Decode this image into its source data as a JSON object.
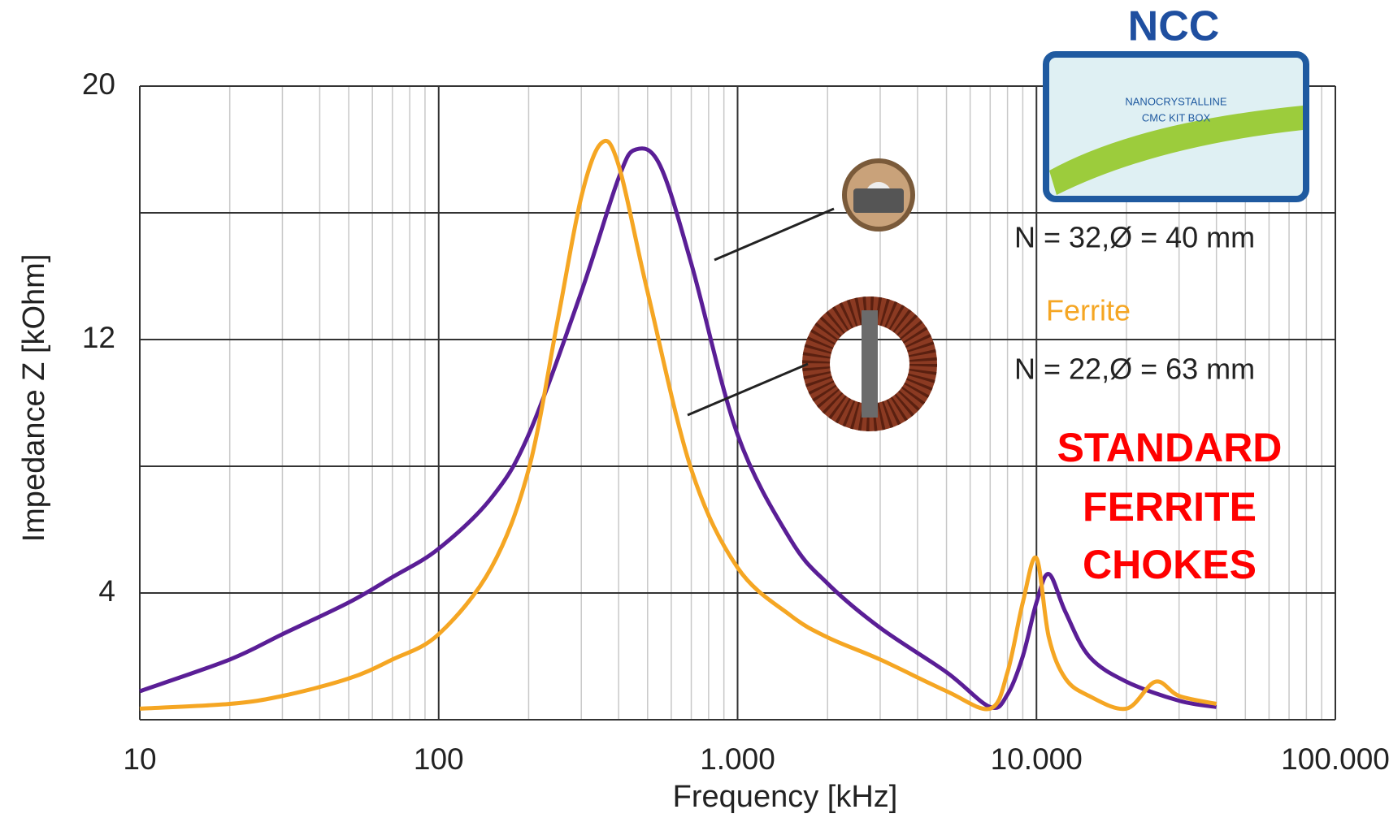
{
  "chart_data": {
    "type": "line",
    "x_label": "Frequency [kHz]",
    "y_label": "Impedance Z [kOhm]",
    "log_x": true,
    "xlim": [
      10,
      100000
    ],
    "xticks": [
      10,
      100,
      {
        "value": 1000,
        "label": "1.000"
      },
      {
        "value": 10000,
        "label": "10.000"
      },
      {
        "value": 100000,
        "label": "100.000"
      }
    ],
    "ylim": [
      0,
      20
    ],
    "yticks": [
      4,
      12,
      20
    ],
    "minor_yticks": [
      8,
      16
    ],
    "grid": true,
    "series": [
      {
        "name": "N = 32,Ø = 40 mm",
        "color": "#5a1e96",
        "x": [
          10,
          20,
          30,
          50,
          70,
          100,
          150,
          200,
          300,
          400,
          457,
          550,
          700,
          1000,
          1500,
          2000,
          3000,
          5000,
          7000,
          8000,
          9000,
          10000,
          11000,
          12500,
          15000,
          20000,
          30000,
          40000
        ],
        "values": [
          0.9,
          1.9,
          2.7,
          3.7,
          4.5,
          5.4,
          7.0,
          9.0,
          13.5,
          17.1,
          18.0,
          17.5,
          14.4,
          9.0,
          5.7,
          4.3,
          2.9,
          1.5,
          0.4,
          0.8,
          2.0,
          3.7,
          4.6,
          3.4,
          2.0,
          1.2,
          0.6,
          0.4
        ]
      },
      {
        "name": "N = 22,Ø = 63 mm",
        "color": "#f5a623",
        "x": [
          10,
          20,
          30,
          50,
          70,
          100,
          150,
          200,
          250,
          300,
          350,
          400,
          500,
          700,
          1000,
          1500,
          2000,
          3000,
          5000,
          7000,
          8000,
          9000,
          10000,
          11000,
          12500,
          15000,
          20000,
          25000,
          30000,
          40000
        ],
        "values": [
          0.35,
          0.5,
          0.75,
          1.3,
          1.9,
          2.7,
          4.8,
          7.9,
          12.6,
          16.5,
          18.2,
          17.5,
          13.5,
          7.9,
          4.8,
          3.3,
          2.6,
          1.9,
          0.9,
          0.35,
          1.5,
          3.7,
          5.1,
          2.6,
          1.3,
          0.75,
          0.35,
          1.2,
          0.75,
          0.5
        ]
      }
    ],
    "annotations": {
      "ferrite": "Ferrite",
      "standard": [
        "STANDARD",
        "FERRITE",
        "CHOKES"
      ],
      "ncc": "NCC",
      "kit_box": [
        "NANOCRYSTALLINE",
        "CMC KIT BOX"
      ]
    }
  }
}
